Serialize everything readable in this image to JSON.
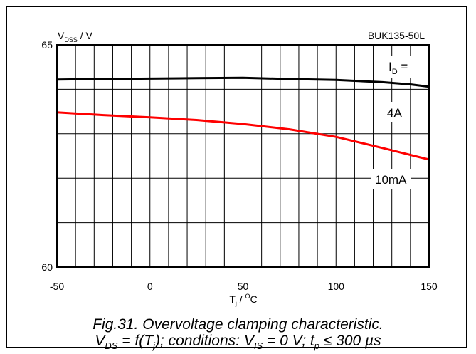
{
  "chart_data": {
    "type": "line",
    "part_number": "BUK135-50L",
    "ylabel": {
      "main": "V",
      "sub": "DSS",
      "unit": " / V"
    },
    "xlabel": {
      "main": "T",
      "sub": "j",
      "unit_prefix": " / ",
      "sup": "O",
      "unit": "C"
    },
    "xlim": [
      -50,
      150
    ],
    "ylim": [
      60,
      65
    ],
    "x_ticks": [
      -50,
      0,
      50,
      100,
      150
    ],
    "y_ticks": [
      60,
      65
    ],
    "x_minor_step": 10,
    "y_minor_step": 1,
    "grid": true,
    "legend_title": {
      "main": "I",
      "sub": "D",
      "suffix": " ="
    },
    "series": [
      {
        "name": "4A",
        "color": "#000000",
        "x": [
          -50,
          -25,
          0,
          25,
          50,
          75,
          100,
          125,
          140,
          150
        ],
        "y": [
          64.22,
          64.23,
          64.24,
          64.25,
          64.26,
          64.23,
          64.21,
          64.16,
          64.11,
          64.06
        ]
      },
      {
        "name": "10mA",
        "color": "#ff0000",
        "x": [
          -50,
          -25,
          0,
          25,
          50,
          75,
          100,
          125,
          150
        ],
        "y": [
          63.48,
          63.42,
          63.37,
          63.31,
          63.22,
          63.1,
          62.93,
          62.68,
          62.42
        ]
      }
    ]
  },
  "caption": {
    "line1": "Fig.31.   Overvoltage clamping characteristic.",
    "line2": {
      "v": "V",
      "v_sub": "DS",
      "eq": " = f(T",
      "tj_sub": "j",
      "cond": "); conditions: V",
      "vis_sub": "IS",
      "vis_val": " = 0 V; t",
      "tp_sub": "p",
      "tail": " ≤ 300 µs"
    }
  }
}
